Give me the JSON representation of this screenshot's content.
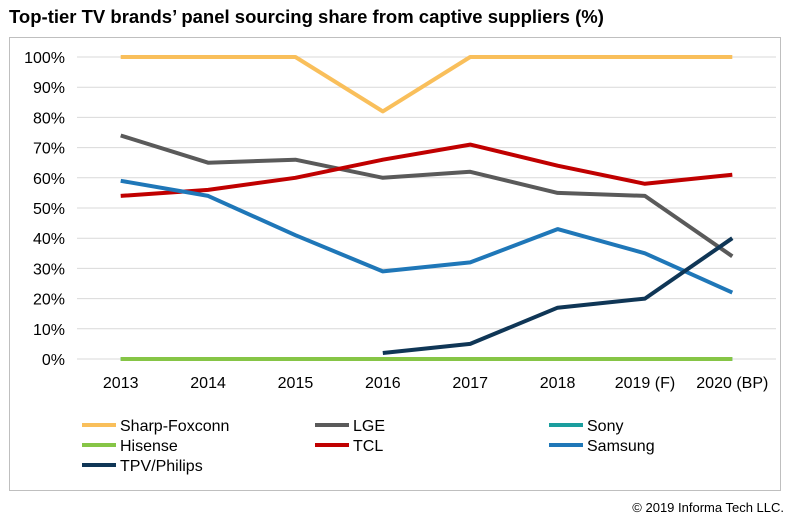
{
  "title": "Top-tier TV brands’ panel sourcing share from captive suppliers (%)",
  "footer": "© 2019 Informa Tech LLC.",
  "chart_data": {
    "type": "line",
    "title": "Top-tier TV brands’ panel sourcing share from captive suppliers (%)",
    "xlabel": "",
    "ylabel": "",
    "categories": [
      "2013",
      "2014",
      "2015",
      "2016",
      "2017",
      "2018",
      "2019 (F)",
      "2020 (BP)"
    ],
    "y_tick_labels": [
      "0%",
      "10%",
      "20%",
      "30%",
      "40%",
      "50%",
      "60%",
      "70%",
      "80%",
      "90%",
      "100%"
    ],
    "ylim": [
      0,
      100
    ],
    "grid": true,
    "legend_position": "bottom",
    "series": [
      {
        "name": "Sharp-Foxconn",
        "color": "#f9bf5b",
        "values": [
          100,
          100,
          100,
          82,
          100,
          100,
          100,
          100
        ]
      },
      {
        "name": "LGE",
        "color": "#5a5a5a",
        "values": [
          74,
          65,
          66,
          60,
          62,
          55,
          54,
          34
        ]
      },
      {
        "name": "Sony",
        "color": "#1b9e9e",
        "values": [
          0,
          0,
          0,
          0,
          0,
          0,
          0,
          0
        ]
      },
      {
        "name": "Hisense",
        "color": "#86c546",
        "values": [
          0,
          0,
          0,
          0,
          0,
          0,
          0,
          0
        ]
      },
      {
        "name": "TCL",
        "color": "#c00000",
        "values": [
          54,
          56,
          60,
          66,
          71,
          64,
          58,
          61
        ]
      },
      {
        "name": "Samsung",
        "color": "#1f77b8",
        "values": [
          59,
          54,
          41,
          29,
          32,
          43,
          35,
          22
        ]
      },
      {
        "name": "TPV/Philips",
        "color": "#0f3656",
        "values": [
          null,
          null,
          null,
          2,
          5,
          17,
          20,
          40
        ]
      }
    ]
  }
}
